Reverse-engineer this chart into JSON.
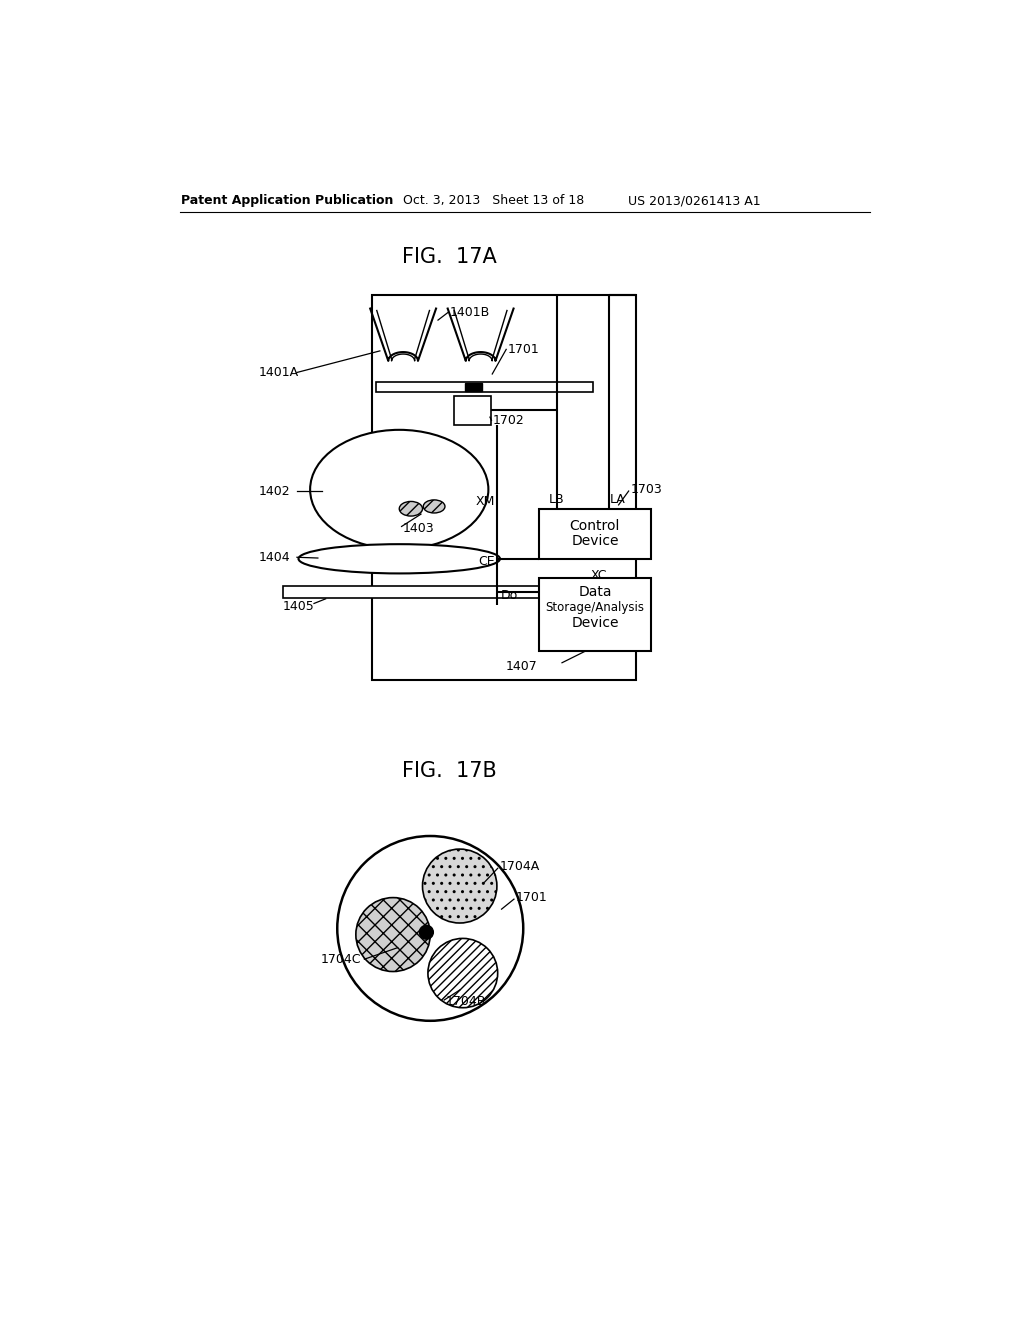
{
  "bg_color": "#ffffff",
  "header_left": "Patent Application Publication",
  "header_mid": "Oct. 3, 2013   Sheet 13 of 18",
  "header_right": "US 2013/0261413 A1",
  "fig17a_title": "FIG.  17A",
  "fig17b_title": "FIG.  17B",
  "line_color": "#000000",
  "text_color": "#000000"
}
